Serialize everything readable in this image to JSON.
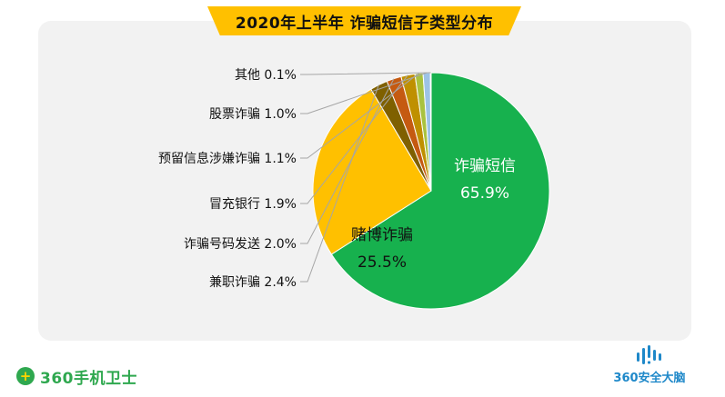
{
  "chart_data": {
    "type": "pie",
    "title": "2020年上半年 诈骗短信子类型分布",
    "slices": [
      {
        "label": "诈骗短信",
        "value": 65.9,
        "display": "65.9%",
        "color": "#17b14e"
      },
      {
        "label": "赌博诈骗",
        "value": 25.5,
        "display": "25.5%",
        "color": "#ffc000"
      },
      {
        "label": "兼职诈骗",
        "value": 2.4,
        "display": "2.4%",
        "color": "#7f6000"
      },
      {
        "label": "诈骗号码发送",
        "value": 2.0,
        "display": "2.0%",
        "color": "#c55a11"
      },
      {
        "label": "冒充银行",
        "value": 1.9,
        "display": "1.9%",
        "color": "#bf9000"
      },
      {
        "label": "预留信息涉嫌诈骗",
        "value": 1.1,
        "display": "1.1%",
        "color": "#a9c23f"
      },
      {
        "label": "股票诈骗",
        "value": 1.0,
        "display": "1.0%",
        "color": "#9dc3e6"
      },
      {
        "label": "其他",
        "value": 0.1,
        "display": "0.1%",
        "color": "#c9c9c9"
      }
    ],
    "start": "12 o'clock",
    "direction": "clockwise",
    "legend": "none"
  },
  "branding": {
    "left_logo_mark": "+",
    "left_logo_text": "360手机卫士",
    "right_logo_text": "360安全大脑"
  },
  "colors": {
    "accent": "#ffc000",
    "panel": "#f2f2f2",
    "brand_green": "#2fa84f",
    "brand_blue": "#1e88c9"
  }
}
